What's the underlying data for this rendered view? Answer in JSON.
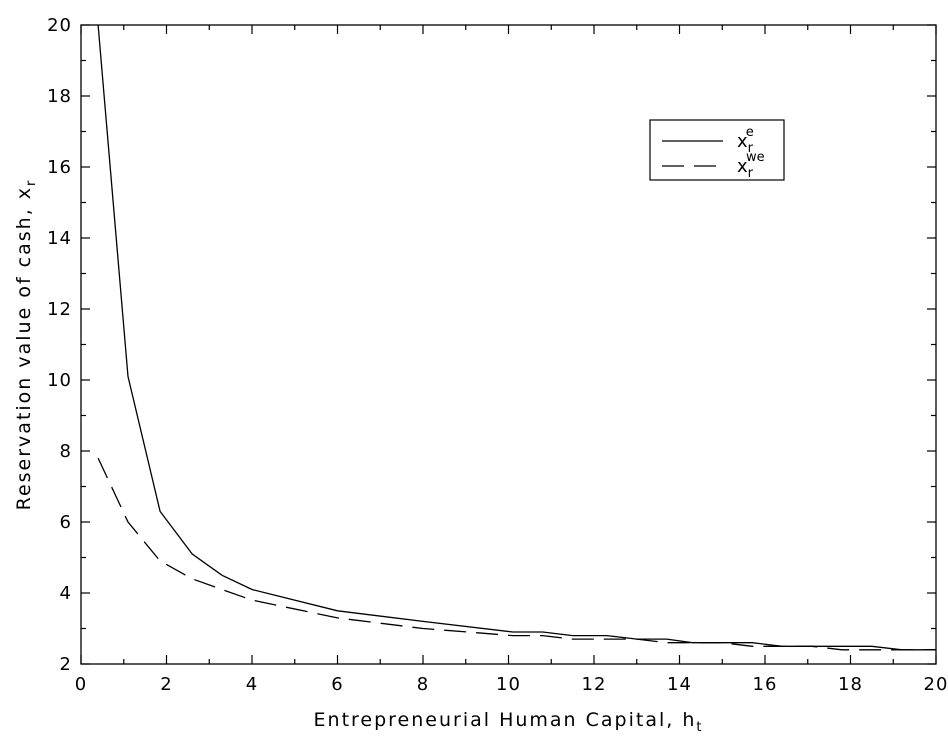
{
  "chart_data": {
    "type": "line",
    "title": "",
    "xlabel": "Entrepreneurial Human Capital, h",
    "xlabel_subscript": "t",
    "ylabel": "Reservation value of cash, x",
    "ylabel_subscript": "r",
    "xlim": [
      0,
      20
    ],
    "ylim": [
      2,
      20
    ],
    "x_ticks": [
      "0",
      "2",
      "4",
      "6",
      "8",
      "10",
      "12",
      "14",
      "16",
      "18",
      "20"
    ],
    "y_ticks": [
      "2",
      "4",
      "6",
      "8",
      "10",
      "12",
      "14",
      "16",
      "18",
      "20"
    ],
    "grid": false,
    "legend_position": "top-right",
    "series": [
      {
        "name": "x",
        "name_subscript": "r",
        "name_superscript": "e",
        "style": "solid",
        "color": "#000000",
        "x": [
          0.4,
          1.1,
          1.85,
          2.6,
          3.3,
          4.0,
          6.0,
          8.0,
          10.1,
          10.8,
          11.5,
          12.3,
          13.0,
          13.7,
          14.3,
          15.0,
          15.7,
          16.4,
          17.1,
          17.8,
          18.5,
          19.2,
          20.0
        ],
        "y": [
          20.0,
          10.1,
          6.3,
          5.1,
          4.5,
          4.1,
          3.5,
          3.2,
          2.9,
          2.9,
          2.8,
          2.8,
          2.7,
          2.7,
          2.6,
          2.6,
          2.6,
          2.5,
          2.5,
          2.5,
          2.5,
          2.4,
          2.4
        ]
      },
      {
        "name": "x",
        "name_subscript": "r",
        "name_superscript": "we",
        "style": "dashed",
        "color": "#000000",
        "x": [
          0.4,
          1.1,
          1.85,
          2.6,
          3.3,
          4.0,
          6.0,
          8.0,
          10.1,
          10.8,
          11.5,
          12.3,
          13.0,
          13.7,
          14.3,
          15.0,
          15.7,
          16.4,
          17.1,
          17.8,
          18.5,
          19.2,
          20.0
        ],
        "y": [
          7.8,
          6.0,
          4.9,
          4.4,
          4.1,
          3.8,
          3.3,
          3.0,
          2.8,
          2.8,
          2.7,
          2.7,
          2.7,
          2.6,
          2.6,
          2.6,
          2.5,
          2.5,
          2.5,
          2.4,
          2.4,
          2.4,
          2.4
        ]
      }
    ]
  }
}
